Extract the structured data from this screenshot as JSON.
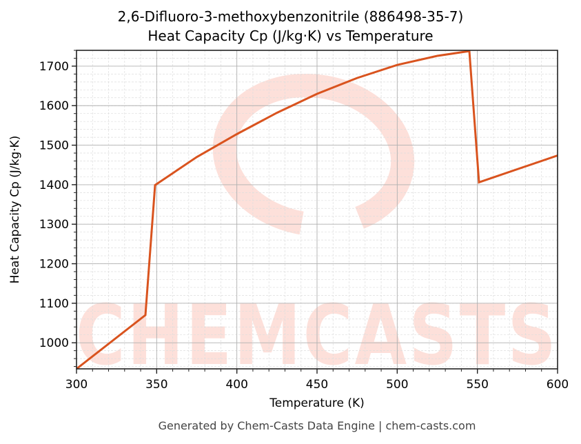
{
  "title_line1": "2,6-Difluoro-3-methoxybenzonitrile (886498-35-7)",
  "title_line2": "Heat Capacity Cp (J/kg·K) vs Temperature",
  "xlabel": "Temperature (K)",
  "ylabel": "Heat Capacity Cp (J/kg·K)",
  "footer": "Generated by Chem-Casts Data Engine | chem-casts.com",
  "watermark": "CHEMCASTS",
  "colors": {
    "line": "#d9531e",
    "watermark": "#fde0da",
    "grid_major": "#b0b0b0",
    "grid_minor": "#dddddd"
  },
  "chart_data": {
    "type": "line",
    "title": "2,6-Difluoro-3-methoxybenzonitrile (886498-35-7) Heat Capacity Cp (J/kg·K) vs Temperature",
    "xlabel": "Temperature (K)",
    "ylabel": "Heat Capacity Cp (J/kg·K)",
    "xlim": [
      300,
      600
    ],
    "ylim": [
      934,
      1740
    ],
    "xticks": [
      300,
      350,
      400,
      450,
      500,
      550,
      600
    ],
    "yticks": [
      1000,
      1100,
      1200,
      1300,
      1400,
      1500,
      1600,
      1700
    ],
    "grid": true,
    "legend": null,
    "series": [
      {
        "name": "Cp",
        "x": [
          300,
          343,
          349,
          375,
          400,
          425,
          450,
          475,
          500,
          525,
          545,
          551,
          600
        ],
        "values": [
          934,
          1070,
          1399,
          1470,
          1528,
          1582,
          1630,
          1670,
          1703,
          1726,
          1738,
          1406,
          1474
        ]
      }
    ]
  }
}
